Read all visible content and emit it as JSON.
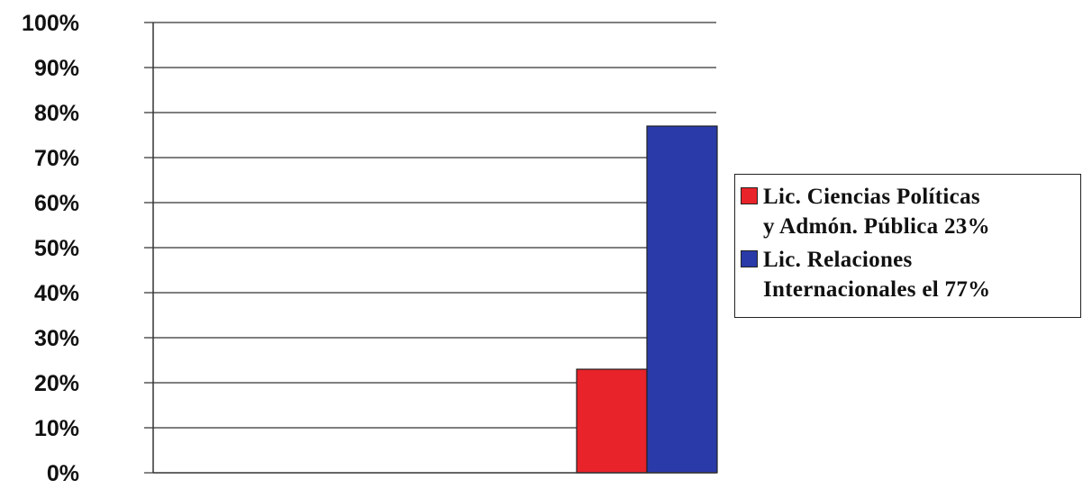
{
  "chart_data": {
    "type": "bar",
    "categories": [
      ""
    ],
    "series": [
      {
        "name": "Lic. Ciencias Políticas y Admón. Pública 23%",
        "values": [
          23
        ],
        "color": "#e8232a"
      },
      {
        "name": "Lic. Relaciones Internacionales el 77%",
        "values": [
          77
        ],
        "color": "#2a3aa8"
      }
    ],
    "ylim": [
      0,
      100
    ],
    "yticks": [
      0,
      10,
      20,
      30,
      40,
      50,
      60,
      70,
      80,
      90,
      100
    ],
    "ytick_labels": [
      "0%",
      "10%",
      "20%",
      "30%",
      "40%",
      "50%",
      "60%",
      "70%",
      "80%",
      "90%",
      "100%"
    ],
    "grid": true,
    "legend_position": "right"
  },
  "legend": {
    "items": [
      {
        "line1": "Lic. Ciencias Políticas",
        "line2": "y Admón. Pública 23%",
        "color": "#e8232a"
      },
      {
        "line1": "Lic. Relaciones",
        "line2": "Internacionales el 77%",
        "color": "#2a3aa8"
      }
    ]
  }
}
